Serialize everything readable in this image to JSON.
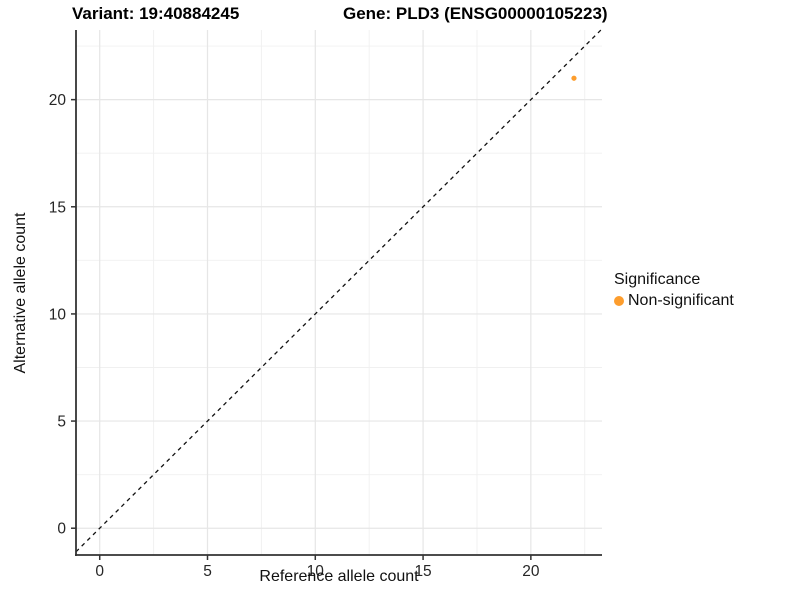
{
  "chart_data": {
    "type": "scatter",
    "title_left": "Variant: 19:40884245",
    "title_right": "Gene: PLD3 (ENSG00000105223)",
    "xlabel": "Reference allele count",
    "ylabel": "Alternative allele count",
    "xlim": [
      -1.1,
      23.3
    ],
    "ylim": [
      -1.25,
      23.25
    ],
    "xticks": [
      0,
      5,
      10,
      15,
      20
    ],
    "yticks": [
      0,
      5,
      10,
      15,
      20
    ],
    "minor_grid_offset": 2.5,
    "grid": true,
    "points": [
      {
        "x": 22,
        "y": 21,
        "series": "Non-significant"
      }
    ],
    "identity_line": {
      "slope": 1,
      "intercept": 0,
      "style": "dashed"
    },
    "legend": {
      "position": "right",
      "title": "Significance",
      "entries": [
        {
          "label": "Non-significant",
          "color": "#FD9D2D",
          "marker": "circle"
        }
      ]
    },
    "colors": {
      "point": "#FD9D2D",
      "grid_major": "#E6E6E6",
      "grid_minor": "#F0F0F0",
      "axis_line": "#333333",
      "tick_text": "#262626",
      "identity_line": "#111111"
    }
  }
}
